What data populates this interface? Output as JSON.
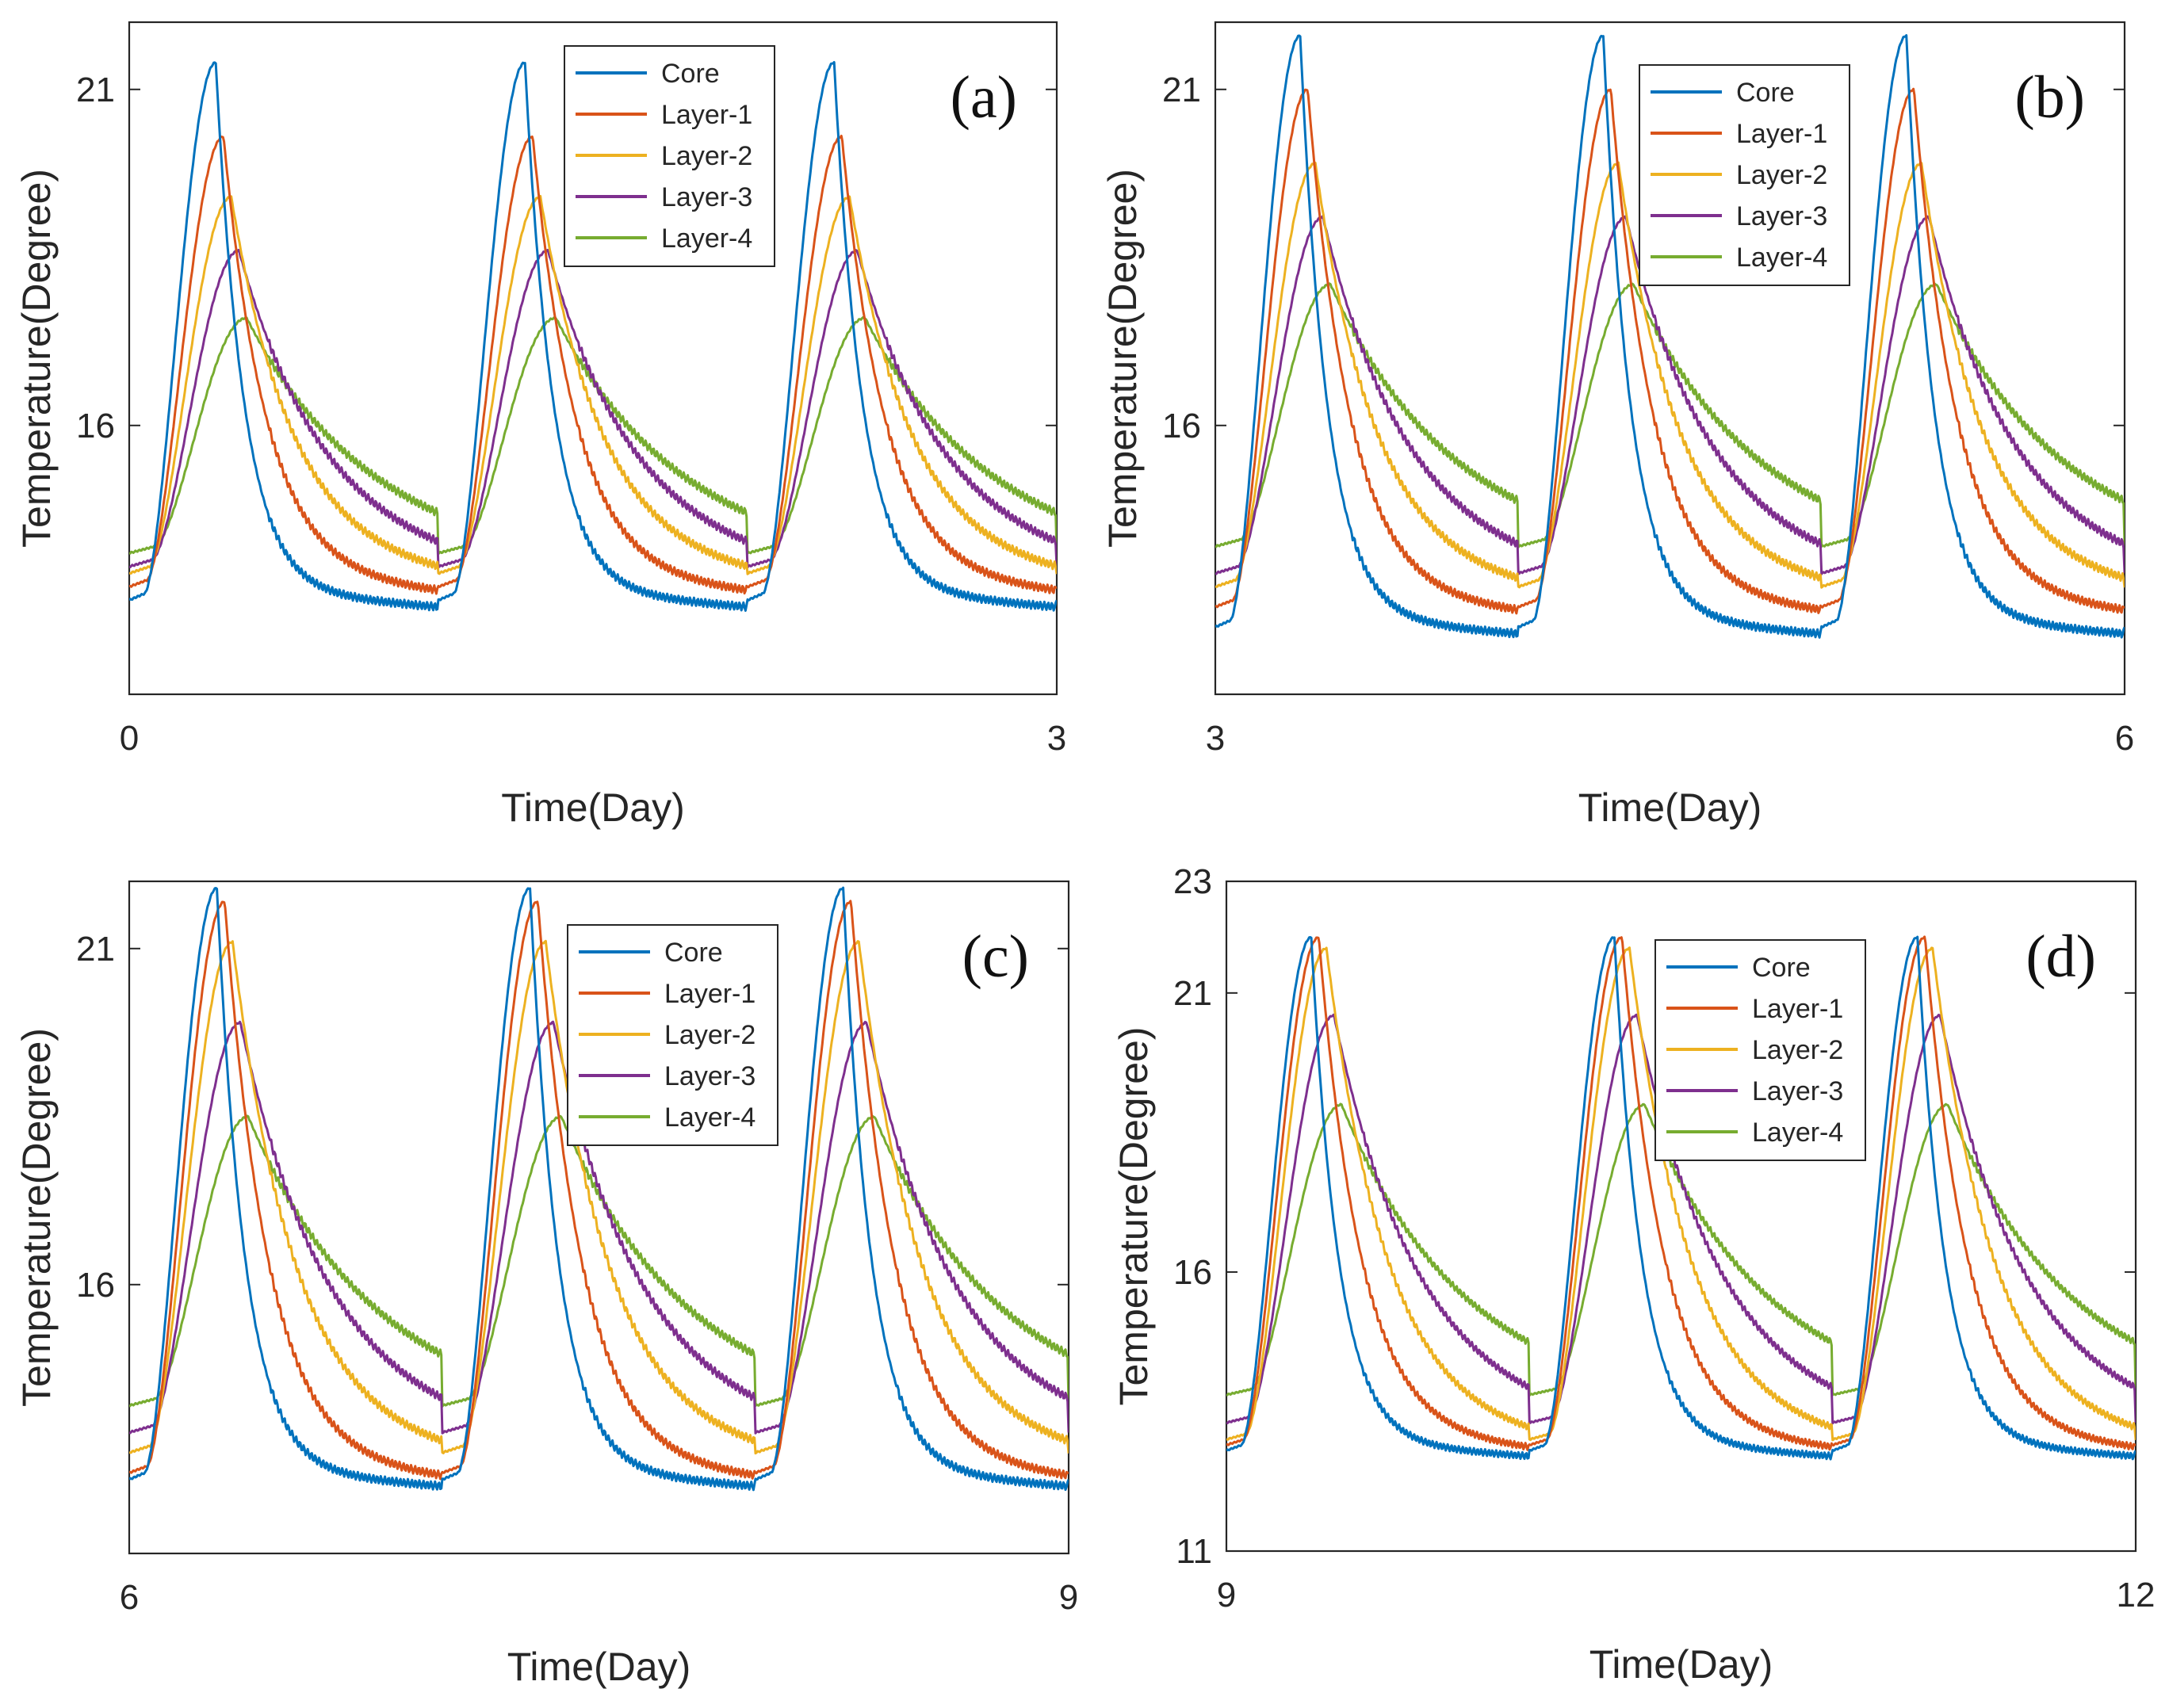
{
  "chart_data": [
    {
      "type": "line",
      "panel_label": "(a)",
      "xlabel": "Time(Day)",
      "ylabel": "Temperature(Degree)",
      "xlim": [
        0,
        3
      ],
      "ylim": [
        12,
        22
      ],
      "xticks": [
        0,
        3
      ],
      "yticks": [
        16,
        21
      ],
      "legend_position": "top-center",
      "day_offset": 0,
      "series": [
        {
          "name": "Core",
          "color": "#0072BD",
          "base": 13.4,
          "peak": 21.4
        },
        {
          "name": "Layer-1",
          "color": "#D95319",
          "base": 13.6,
          "peak": 20.3
        },
        {
          "name": "Layer-2",
          "color": "#EDB120",
          "base": 13.8,
          "peak": 19.4
        },
        {
          "name": "Layer-3",
          "color": "#7E2F8E",
          "base": 13.9,
          "peak": 18.6
        },
        {
          "name": "Layer-4",
          "color": "#77AC30",
          "base": 14.1,
          "peak": 17.6
        }
      ]
    },
    {
      "type": "line",
      "panel_label": "(b)",
      "xlabel": "Time(Day)",
      "ylabel": "Temperature(Degree)",
      "xlim": [
        3,
        6
      ],
      "ylim": [
        12,
        22
      ],
      "xticks": [
        3,
        6
      ],
      "yticks": [
        16,
        21
      ],
      "legend_position": "top-center",
      "day_offset": 3,
      "series": [
        {
          "name": "Core",
          "color": "#0072BD",
          "base": 13.0,
          "peak": 21.8
        },
        {
          "name": "Layer-1",
          "color": "#D95319",
          "base": 13.3,
          "peak": 21.0
        },
        {
          "name": "Layer-2",
          "color": "#EDB120",
          "base": 13.6,
          "peak": 19.9
        },
        {
          "name": "Layer-3",
          "color": "#7E2F8E",
          "base": 13.8,
          "peak": 19.1
        },
        {
          "name": "Layer-4",
          "color": "#77AC30",
          "base": 14.2,
          "peak": 18.1
        }
      ]
    },
    {
      "type": "line",
      "panel_label": "(c)",
      "xlabel": "Time(Day)",
      "ylabel": "Temperature(Degree)",
      "xlim": [
        6,
        9
      ],
      "ylim": [
        12,
        22
      ],
      "xticks": [
        6,
        9
      ],
      "yticks": [
        16,
        21
      ],
      "legend_position": "top-center",
      "day_offset": 6,
      "series": [
        {
          "name": "Core",
          "color": "#0072BD",
          "base": 13.1,
          "peak": 21.9
        },
        {
          "name": "Layer-1",
          "color": "#D95319",
          "base": 13.2,
          "peak": 21.7
        },
        {
          "name": "Layer-2",
          "color": "#EDB120",
          "base": 13.5,
          "peak": 21.1
        },
        {
          "name": "Layer-3",
          "color": "#7E2F8E",
          "base": 13.8,
          "peak": 19.9
        },
        {
          "name": "Layer-4",
          "color": "#77AC30",
          "base": 14.2,
          "peak": 18.5
        }
      ]
    },
    {
      "type": "line",
      "panel_label": "(d)",
      "xlabel": "Time(Day)",
      "ylabel": "Temperature(Degree)",
      "xlim": [
        9,
        12
      ],
      "ylim": [
        11,
        23
      ],
      "xticks": [
        9,
        12
      ],
      "yticks": [
        11,
        16,
        21,
        23
      ],
      "legend_position": "top-center",
      "day_offset": 9,
      "series": [
        {
          "name": "Core",
          "color": "#0072BD",
          "base": 12.8,
          "peak": 22.0
        },
        {
          "name": "Layer-1",
          "color": "#D95319",
          "base": 12.9,
          "peak": 22.0
        },
        {
          "name": "Layer-2",
          "color": "#EDB120",
          "base": 13.0,
          "peak": 21.8
        },
        {
          "name": "Layer-3",
          "color": "#7E2F8E",
          "base": 13.3,
          "peak": 20.6
        },
        {
          "name": "Layer-4",
          "color": "#77AC30",
          "base": 13.8,
          "peak": 19.0
        }
      ]
    }
  ]
}
